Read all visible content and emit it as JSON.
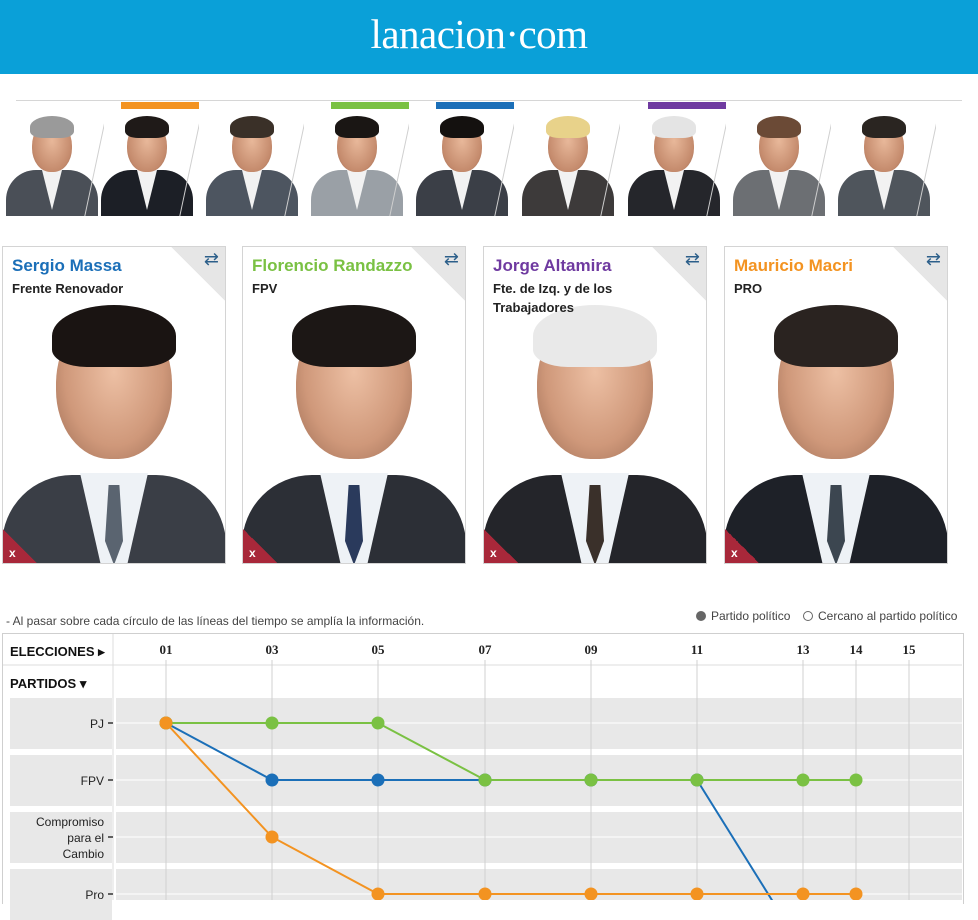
{
  "header": {
    "logo": "lanacion·com",
    "bg": "#0aa0d8"
  },
  "strip": [
    {
      "name": "thumb-1",
      "bar": null,
      "hair": "#9a9a9a",
      "suit": "#4a4f57"
    },
    {
      "name": "thumb-2",
      "bar": "#f39321",
      "hair": "#1f1a18",
      "suit": "#1c1f26"
    },
    {
      "name": "thumb-3",
      "bar": null,
      "hair": "#3a3028",
      "suit": "#4d5560"
    },
    {
      "name": "thumb-4",
      "bar": "#7ac143",
      "hair": "#1a1614",
      "suit": "#9aa0a6"
    },
    {
      "name": "thumb-5",
      "bar": "#1b6fb8",
      "hair": "#14110f",
      "suit": "#3b3f47"
    },
    {
      "name": "thumb-6",
      "bar": null,
      "hair": "#e8d28a",
      "suit": "#3d3a3a"
    },
    {
      "name": "thumb-7",
      "bar": "#6f3aa0",
      "hair": "#e4e4e4",
      "suit": "#25262b"
    },
    {
      "name": "thumb-8",
      "bar": null,
      "hair": "#6b4a36",
      "suit": "#6c6f73"
    },
    {
      "name": "thumb-9",
      "bar": null,
      "hair": "#2a2521",
      "suit": "#4f555c"
    }
  ],
  "cards": [
    {
      "name": "Sergio Massa",
      "party": "Frente Renovador",
      "color": "#1b6fb8",
      "hair": "#1a1412",
      "suit": "#3a3e46",
      "tie": "#5a6470",
      "close": "x"
    },
    {
      "name": "Florencio Randazzo",
      "party": "FPV",
      "color": "#7ac143",
      "hair": "#1c1715",
      "suit": "#2c2f36",
      "tie": "#2a3a5c",
      "close": "x"
    },
    {
      "name": "Jorge Altamira",
      "party": "Fte. de Izq. y de los Trabajadores",
      "color": "#6f3aa0",
      "hair": "#e9e9e9",
      "suit": "#24252a",
      "tie": "#3a302a",
      "close": "x"
    },
    {
      "name": "Mauricio Macri",
      "party": "PRO",
      "color": "#f39321",
      "hair": "#2a2320",
      "suit": "#1e2128",
      "tie": "#3c4650",
      "close": "x"
    }
  ],
  "note": "- Al pasar sobre cada círculo de las líneas del tiempo se amplía la información.",
  "legend": {
    "party": "Partido político",
    "near": "Cercano al partido político"
  },
  "chart_labels": {
    "elections": "ELECCIONES",
    "parties": "PARTIDOS"
  },
  "chart_data": {
    "type": "line",
    "x": [
      "01",
      "03",
      "05",
      "07",
      "09",
      "11",
      "13",
      "14",
      "15"
    ],
    "parties": [
      "PJ",
      "FPV",
      "Compromiso para el Cambio",
      "Pro"
    ],
    "series": [
      {
        "color": "#1b6fb8",
        "points": [
          [
            "01",
            "PJ"
          ],
          [
            "03",
            "FPV"
          ],
          [
            "05",
            "FPV"
          ],
          [
            "07",
            "FPV"
          ],
          [
            "09",
            "FPV"
          ],
          [
            "11",
            "FPV"
          ]
        ]
      },
      {
        "color": "#7ac143",
        "points": [
          [
            "01",
            "PJ"
          ],
          [
            "03",
            "PJ"
          ],
          [
            "05",
            "PJ"
          ],
          [
            "07",
            "FPV"
          ],
          [
            "09",
            "FPV"
          ],
          [
            "11",
            "FPV"
          ],
          [
            "13",
            "FPV"
          ],
          [
            "14",
            "FPV"
          ]
        ]
      },
      {
        "color": "#f39321",
        "points": [
          [
            "01",
            "PJ"
          ],
          [
            "03",
            "Compromiso para el Cambio"
          ],
          [
            "05",
            "Pro"
          ],
          [
            "07",
            "Pro"
          ],
          [
            "09",
            "Pro"
          ],
          [
            "11",
            "Pro"
          ],
          [
            "13",
            "Pro"
          ],
          [
            "14",
            "Pro"
          ]
        ]
      }
    ]
  }
}
